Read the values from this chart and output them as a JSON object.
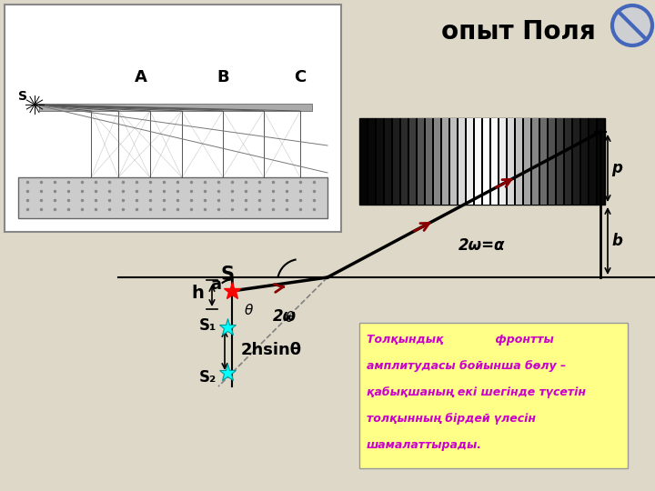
{
  "bg_color": "#ddd8c8",
  "white_box_bg": "#f5f5f0",
  "title": "опыт Поля",
  "title_fontsize": 20,
  "title_fontweight": "bold",
  "text_box_color": "#ffff88",
  "text_box_fontcolor": "#cc00cc",
  "text_lines": [
    "Толқындық             фронтты",
    "амплитудасы бойынша бөлу –",
    "қабықшаның екі шегінде түсетін",
    "толқынның бірдей үлесін",
    "шамалаттырады."
  ],
  "label_2omega_alpha": "2ω=α",
  "label_2omega": "2ω",
  "label_S": "S",
  "label_a": "a",
  "label_h": "h",
  "label_theta": "θ",
  "label_S1": "S₁",
  "label_S2": "S₂",
  "label_2hsin": "2hsinθ",
  "label_p": "p",
  "label_b": "b"
}
